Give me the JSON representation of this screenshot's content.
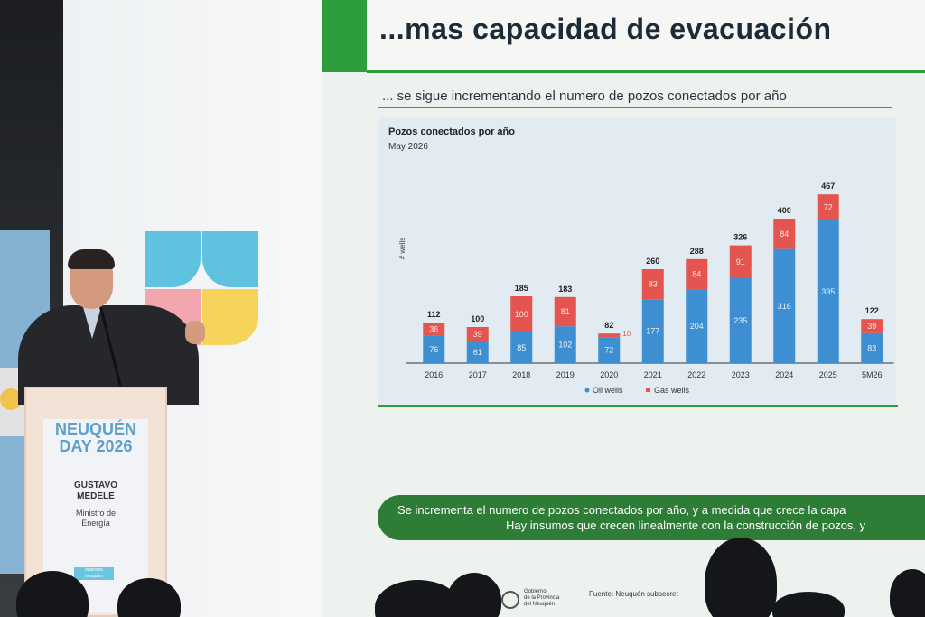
{
  "slide": {
    "title": "...mas capacidad de evacuación",
    "subtitle": "... se sigue incrementando el numero de pozos conectados por año",
    "banner_line1": "Se incrementa el numero de pozos conectados por año, y a medida que crece la capa",
    "banner_line2": "Hay insumos que crecen linealmente con la construcción de pozos, y",
    "source": "Fuente: Neuquén subsecret",
    "gov_line1": "Gobierno",
    "gov_line2": "de la Provincia",
    "gov_line3": "del Neuquén"
  },
  "podium": {
    "event_line1": "NEUQUÉN",
    "event_line2": "DAY 2026",
    "speaker_first": "GUSTAVO",
    "speaker_last": "MEDELE",
    "role_line1": "Ministro de",
    "role_line2": "Energía",
    "badge_line1": "business",
    "badge_line2": "neuquén"
  },
  "colors": {
    "green": "#2e9e3c",
    "oil": "#3d8fd1",
    "gas": "#e4554f",
    "logo_blue": "#5fc3df",
    "logo_pink": "#f2a6ad",
    "logo_yellow": "#f6d35a"
  },
  "chart_data": {
    "type": "bar",
    "title": "Pozos conectados por año",
    "subtitle": "May 2026",
    "ylabel": "# wells",
    "categories": [
      "2016",
      "2017",
      "2018",
      "2019",
      "2020",
      "2021",
      "2022",
      "2023",
      "2024",
      "2025",
      "5M26"
    ],
    "series": [
      {
        "name": "Oil wells",
        "values": [
          76,
          61,
          85,
          102,
          72,
          177,
          204,
          235,
          316,
          395,
          83
        ]
      },
      {
        "name": "Gas wells",
        "values": [
          36,
          39,
          100,
          81,
          10,
          83,
          84,
          91,
          84,
          72,
          39
        ]
      }
    ],
    "totals": [
      112,
      100,
      185,
      183,
      82,
      260,
      288,
      326,
      400,
      467,
      122
    ],
    "ylim": [
      0,
      500
    ],
    "stacked": true,
    "grid": false,
    "legend": "bottom"
  }
}
